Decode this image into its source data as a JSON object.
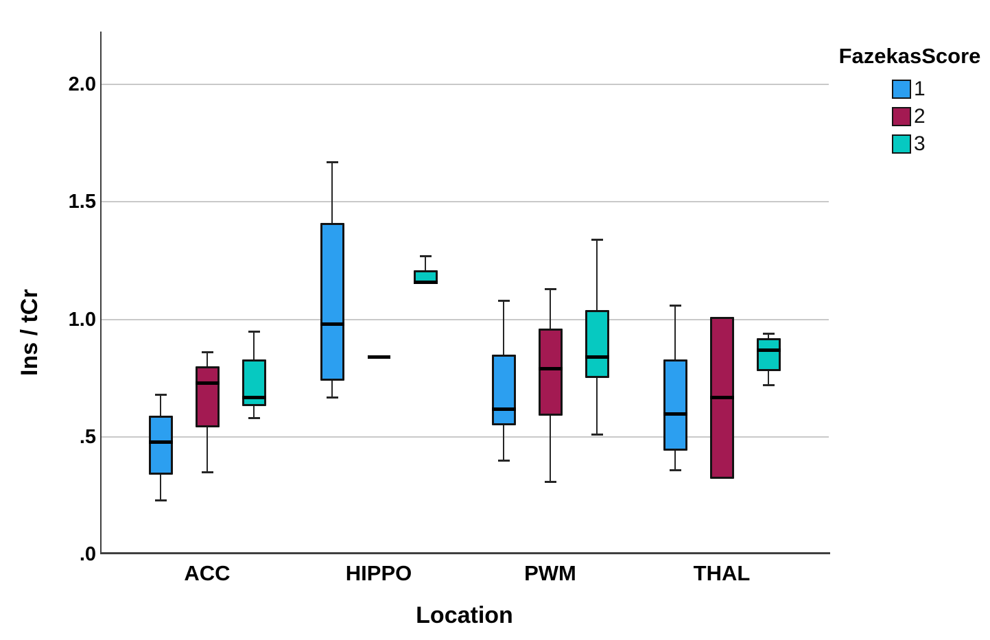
{
  "chart_data": {
    "type": "boxplot",
    "xlabel": "Location",
    "ylabel": "Ins / tCr",
    "ylim": [
      0,
      2.2
    ],
    "grid": "horizontal",
    "gridline_values": [
      0.5,
      1.0,
      1.5,
      2.0
    ],
    "yticks": [
      {
        "value": 0.0,
        "label": ".0"
      },
      {
        "value": 0.5,
        "label": ".5"
      },
      {
        "value": 1.0,
        "label": "1.0"
      },
      {
        "value": 1.5,
        "label": "1.5"
      },
      {
        "value": 2.0,
        "label": "2.0"
      }
    ],
    "categories": [
      "ACC",
      "HIPPO",
      "PWM",
      "THAL"
    ],
    "legend": {
      "title": "FazekasScore",
      "position": "top-right",
      "entries": [
        {
          "label": "1",
          "color": "#2C9FF0"
        },
        {
          "label": "2",
          "color": "#A31A52"
        },
        {
          "label": "3",
          "color": "#06C9C1"
        }
      ]
    },
    "series": [
      {
        "name": "1",
        "color": "#2C9FF0",
        "boxes": [
          {
            "category": "ACC",
            "whisker_low": 0.23,
            "q1": 0.34,
            "median": 0.48,
            "q3": 0.59,
            "whisker_high": 0.68
          },
          {
            "category": "HIPPO",
            "whisker_low": 0.67,
            "q1": 0.74,
            "median": 0.98,
            "q3": 1.41,
            "whisker_high": 1.67
          },
          {
            "category": "PWM",
            "whisker_low": 0.4,
            "q1": 0.55,
            "median": 0.62,
            "q3": 0.85,
            "whisker_high": 1.08
          },
          {
            "category": "THAL",
            "whisker_low": 0.36,
            "q1": 0.44,
            "median": 0.6,
            "q3": 0.83,
            "whisker_high": 1.06
          }
        ]
      },
      {
        "name": "2",
        "color": "#A31A52",
        "boxes": [
          {
            "category": "ACC",
            "whisker_low": 0.35,
            "q1": 0.54,
            "median": 0.73,
            "q3": 0.8,
            "whisker_high": 0.86
          },
          {
            "category": "HIPPO",
            "median_only": true,
            "median": 0.84
          },
          {
            "category": "PWM",
            "whisker_low": 0.31,
            "q1": 0.59,
            "median": 0.79,
            "q3": 0.96,
            "whisker_high": 1.13
          },
          {
            "category": "THAL",
            "q1": 0.32,
            "median": 0.67,
            "q3": 1.01
          }
        ]
      },
      {
        "name": "3",
        "color": "#06C9C1",
        "boxes": [
          {
            "category": "ACC",
            "whisker_low": 0.58,
            "q1": 0.63,
            "median": 0.67,
            "q3": 0.83,
            "whisker_high": 0.95
          },
          {
            "category": "HIPPO",
            "q1": 1.15,
            "median": 1.16,
            "q3": 1.21,
            "whisker_high": 1.27
          },
          {
            "category": "PWM",
            "whisker_low": 0.51,
            "q1": 0.75,
            "median": 0.84,
            "q3": 1.04,
            "whisker_high": 1.34
          },
          {
            "category": "THAL",
            "whisker_low": 0.72,
            "q1": 0.78,
            "median": 0.87,
            "q3": 0.92,
            "whisker_high": 0.94
          }
        ]
      }
    ]
  }
}
